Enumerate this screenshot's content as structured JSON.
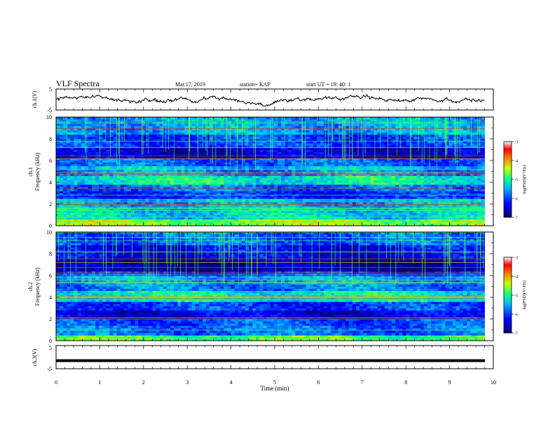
{
  "header": {
    "title": "VLF Spectra",
    "date": "Mar.17, 2019",
    "station": "station= KAP",
    "start_ut": "start  UT =   19: 40: 1"
  },
  "chart_data": [
    {
      "type": "line",
      "panel": "ch1-waveform",
      "ylabel": "ch.1(V)",
      "ylim": [
        -5,
        5
      ],
      "yticks": [
        "5",
        "-5"
      ],
      "xlim": [
        0,
        10
      ],
      "x_extent_min": [
        0,
        9.8
      ],
      "series": [
        {
          "values_description_free": true,
          "y_approx_range": [
            -2.5,
            2.5
          ]
        }
      ],
      "color": "#000000"
    },
    {
      "type": "heatmap",
      "panel": "ch1-spectrogram",
      "ylabel": "ch.1\nFrequency (kHz)",
      "ylabel_line1": "ch.1",
      "ylabel_line2": "Frequency (kHz)",
      "ylim": [
        0,
        10
      ],
      "yticks": [
        "0",
        "2",
        "4",
        "6",
        "8",
        "10"
      ],
      "xlim": [
        0,
        10
      ],
      "data_x_extent": [
        0,
        9.8
      ],
      "band_levels_khz": [
        [
          0,
          0.6,
          0.6
        ],
        [
          0.6,
          1.6,
          0.42
        ],
        [
          1.6,
          2.2,
          0.36
        ],
        [
          2.2,
          2.5,
          0.4
        ],
        [
          2.5,
          3.2,
          0.22
        ],
        [
          3.2,
          3.8,
          0.3
        ],
        [
          3.8,
          4.6,
          0.46
        ],
        [
          4.6,
          5.2,
          0.34
        ],
        [
          5.2,
          5.5,
          0.4
        ],
        [
          5.5,
          6.2,
          0.28
        ],
        [
          6.2,
          7.2,
          0.12
        ],
        [
          7.2,
          8.4,
          0.24
        ],
        [
          8.4,
          10,
          0.36
        ]
      ],
      "colorbar": {
        "label": "log(PSD)(V²/Hz)",
        "min": -7,
        "max": -3,
        "ticks": [
          "-3",
          "-4",
          "-5",
          "-6",
          "-7"
        ],
        "colors": [
          "#000080",
          "#0000ff",
          "#00c8ff",
          "#00ff80",
          "#ffff00",
          "#ff2000",
          "#ffffff"
        ]
      }
    },
    {
      "type": "heatmap",
      "panel": "ch2-spectrogram",
      "ylabel_line1": "ch.2",
      "ylabel_line2": "Frequency (kHz)",
      "ylim": [
        0,
        10
      ],
      "yticks": [
        "0",
        "2",
        "4",
        "6",
        "8",
        "10"
      ],
      "xlim": [
        0,
        10
      ],
      "data_x_extent": [
        0,
        9.8
      ],
      "band_levels_khz": [
        [
          0,
          0.5,
          0.55
        ],
        [
          0.5,
          1.4,
          0.3
        ],
        [
          1.4,
          2.0,
          0.26
        ],
        [
          2.0,
          2.8,
          0.14
        ],
        [
          2.8,
          3.6,
          0.24
        ],
        [
          3.6,
          4.6,
          0.46
        ],
        [
          4.6,
          5.2,
          0.32
        ],
        [
          5.2,
          6.0,
          0.36
        ],
        [
          6.0,
          6.4,
          0.22
        ],
        [
          6.4,
          7.6,
          0.06
        ],
        [
          7.6,
          8.8,
          0.16
        ],
        [
          8.8,
          10,
          0.28
        ]
      ],
      "colorbar": {
        "label": "log(PSD)(V²/Hz)",
        "min": -7,
        "max": -3,
        "ticks": [
          "-3",
          "-4",
          "-5",
          "-6",
          "-7"
        ]
      }
    },
    {
      "type": "line",
      "panel": "ch3-waveform",
      "ylabel": "ch.3(V)",
      "ylim": [
        -5,
        5
      ],
      "yticks": [
        "5",
        "-5"
      ],
      "xlim": [
        0,
        10
      ],
      "series": [
        {
          "constant_value": -1.5
        }
      ],
      "color": "#000000"
    }
  ],
  "xaxis": {
    "label": "Time  (min)",
    "ticks": [
      "0",
      "1",
      "2",
      "3",
      "4",
      "5",
      "6",
      "7",
      "8",
      "9",
      "10"
    ]
  }
}
